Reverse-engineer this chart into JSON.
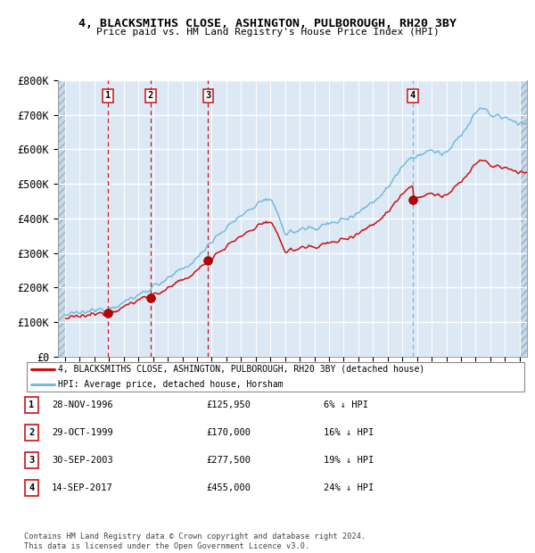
{
  "title1": "4, BLACKSMITHS CLOSE, ASHINGTON, PULBOROUGH, RH20 3BY",
  "title2": "Price paid vs. HM Land Registry's House Price Index (HPI)",
  "ylim": [
    0,
    800000
  ],
  "yticks": [
    0,
    100000,
    200000,
    300000,
    400000,
    500000,
    600000,
    700000,
    800000
  ],
  "ytick_labels": [
    "£0",
    "£100K",
    "£200K",
    "£300K",
    "£400K",
    "£500K",
    "£600K",
    "£700K",
    "£800K"
  ],
  "xlim_start": 1993.5,
  "xlim_end": 2025.5,
  "purchases": [
    {
      "num": "1",
      "date_label": "28-NOV-1996",
      "date_x": 1996.91,
      "price": 125950
    },
    {
      "num": "2",
      "date_label": "29-OCT-1999",
      "date_x": 1999.83,
      "price": 170000
    },
    {
      "num": "3",
      "date_label": "30-SEP-2003",
      "date_x": 2003.75,
      "price": 277500
    },
    {
      "num": "4",
      "date_label": "14-SEP-2017",
      "date_x": 2017.71,
      "price": 455000
    }
  ],
  "hpi_line_color": "#7ab8d9",
  "price_line_color": "#cc1111",
  "dot_color": "#bb0000",
  "bg_color": "#dce9f5",
  "hatch_bg_color": "#c8d8e8",
  "grid_color": "#ffffff",
  "legend_label_red": "4, BLACKSMITHS CLOSE, ASHINGTON, PULBOROUGH, RH20 3BY (detached house)",
  "legend_label_blue": "HPI: Average price, detached house, Horsham",
  "footer": "Contains HM Land Registry data © Crown copyright and database right 2024.\nThis data is licensed under the Open Government Licence v3.0.",
  "table_rows": [
    {
      "num": "1",
      "date": "28-NOV-1996",
      "price": "£125,950",
      "pct": "6% ↓ HPI"
    },
    {
      "num": "2",
      "date": "29-OCT-1999",
      "price": "£170,000",
      "pct": "16% ↓ HPI"
    },
    {
      "num": "3",
      "date": "30-SEP-2003",
      "price": "£277,500",
      "pct": "19% ↓ HPI"
    },
    {
      "num": "4",
      "date": "14-SEP-2017",
      "price": "£455,000",
      "pct": "24% ↓ HPI"
    }
  ],
  "anchor_years": [
    1994,
    1995,
    1996,
    1997,
    1998,
    1999,
    2000,
    2001,
    2002,
    2003,
    2004,
    2005,
    2006,
    2007,
    2007.5,
    2008,
    2008.5,
    2009,
    2009.5,
    2010,
    2011,
    2012,
    2013,
    2014,
    2015,
    2016,
    2017,
    2017.5,
    2018,
    2019,
    2020,
    2021,
    2022,
    2022.5,
    2023,
    2024,
    2024.5,
    2025
  ],
  "anchor_hpi": [
    120000,
    126000,
    133000,
    142000,
    157000,
    178000,
    204000,
    224000,
    253000,
    283000,
    338000,
    372000,
    408000,
    438000,
    455000,
    448000,
    420000,
    355000,
    360000,
    368000,
    374000,
    383000,
    398000,
    418000,
    448000,
    488000,
    555000,
    575000,
    582000,
    595000,
    588000,
    638000,
    708000,
    720000,
    700000,
    690000,
    685000,
    675000
  ]
}
